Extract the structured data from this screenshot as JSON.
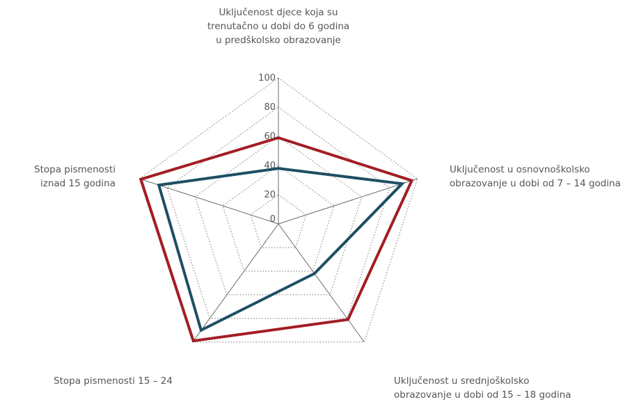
{
  "chart_data": {
    "type": "radar",
    "axes": [
      {
        "label_lines": [
          "Uključenost djece koja su",
          "trenutačno u dobi do 6 godina",
          "u predškolsko obrazovanje"
        ]
      },
      {
        "label_lines": [
          "Uključenost u osnovnoškolsko",
          "obrazovanje u dobi od 7 – 14 godina"
        ]
      },
      {
        "label_lines": [
          "Uključenost u srednjoškolsko",
          "obrazovanje u dobi od 15 – 18 godina"
        ]
      },
      {
        "label_lines": [
          "Stopa pismenosti 15 – 24"
        ]
      },
      {
        "label_lines": [
          "Stopa pismenosti",
          "iznad 15 godina"
        ]
      }
    ],
    "ticks": [
      0,
      20,
      40,
      60,
      80,
      100
    ],
    "range": [
      0,
      100
    ],
    "series": [
      {
        "values": [
          59,
          96,
          81,
          99,
          99
        ],
        "color": "#a31d24"
      },
      {
        "values": [
          38,
          89,
          42,
          90,
          86
        ],
        "color": "#1e4f63"
      }
    ],
    "grid": "dotted"
  }
}
